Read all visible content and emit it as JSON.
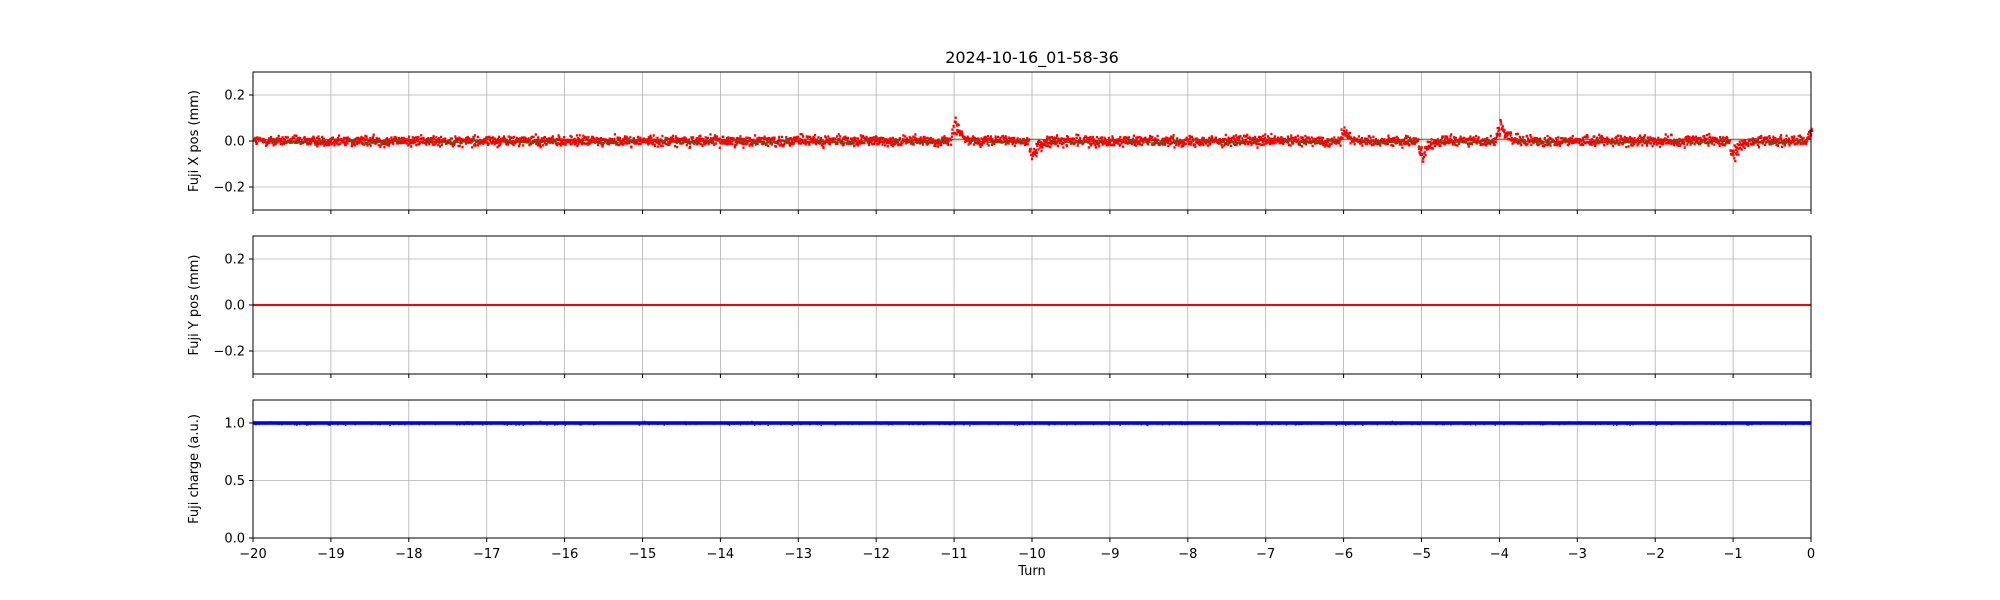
{
  "chart_data": {
    "title": "2024-10-16_01-58-36",
    "xlabel": "Turn",
    "xlim": [
      -20,
      0
    ],
    "x_ticks": [
      -20,
      -19,
      -18,
      -17,
      -16,
      -15,
      -14,
      -13,
      -12,
      -11,
      -10,
      -9,
      -8,
      -7,
      -6,
      -5,
      -4,
      -3,
      -2,
      -1,
      0
    ],
    "x_tick_labels": [
      "−20",
      "−19",
      "−18",
      "−17",
      "−16",
      "−15",
      "−14",
      "−13",
      "−12",
      "−11",
      "−10",
      "−9",
      "−8",
      "−7",
      "−6",
      "−5",
      "−4",
      "−3",
      "−2",
      "−1",
      "0"
    ],
    "grid": true,
    "panels": [
      {
        "id": "x",
        "type": "scatter",
        "ylabel": "Fuji X pos (mm)",
        "ylim": [
          -0.3,
          0.3
        ],
        "y_ticks": [
          -0.2,
          0.0,
          0.2
        ],
        "y_tick_labels": [
          "−0.2",
          "0.0",
          "0.2"
        ],
        "color": "#ff0000",
        "trend_color": "#2e6b1f",
        "baseline": 0.0,
        "spread": 0.025,
        "excursions": [
          {
            "turn": -11,
            "value": 0.09
          },
          {
            "turn": -10,
            "value": -0.08
          },
          {
            "turn": -6,
            "value": 0.05
          },
          {
            "turn": -5,
            "value": -0.09
          },
          {
            "turn": -4,
            "value": 0.09
          },
          {
            "turn": -1,
            "value": -0.08
          },
          {
            "turn": 0,
            "value": 0.07
          }
        ]
      },
      {
        "id": "y",
        "type": "line",
        "ylabel": "Fuji Y pos (mm)",
        "ylim": [
          -0.3,
          0.3
        ],
        "y_ticks": [
          -0.2,
          0.0,
          0.2
        ],
        "y_tick_labels": [
          "−0.2",
          "0.0",
          "0.2"
        ],
        "color": "#ff0000",
        "baseline": 0.0
      },
      {
        "id": "charge",
        "type": "line",
        "ylabel": "Fuji charge (a.u.)",
        "ylim": [
          0.0,
          1.2
        ],
        "y_ticks": [
          0.0,
          0.5,
          1.0
        ],
        "y_tick_labels": [
          "0.0",
          "0.5",
          "1.0"
        ],
        "color": "#0000ff",
        "baseline": 1.0,
        "spread": 0.01
      }
    ]
  }
}
